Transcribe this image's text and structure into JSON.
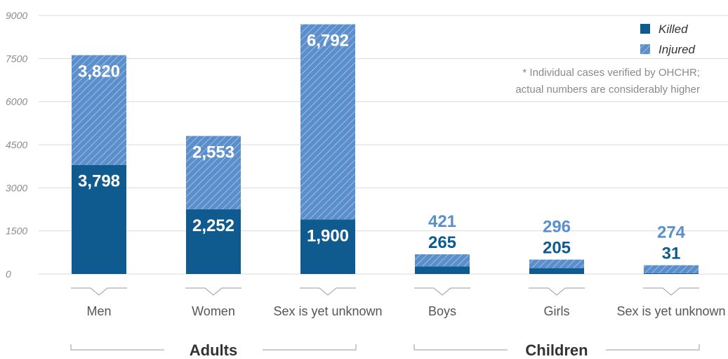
{
  "chart_data": {
    "type": "bar",
    "stacked": true,
    "categories": [
      "Men",
      "Women",
      "Sex is yet unknown",
      "Boys",
      "Girls",
      "Sex is yet unknown"
    ],
    "groups": [
      {
        "label": "Adults",
        "categories": [
          0,
          1,
          2
        ]
      },
      {
        "label": "Children",
        "categories": [
          3,
          4,
          5
        ]
      }
    ],
    "series": [
      {
        "name": "Killed",
        "values": [
          3798,
          2252,
          1900,
          265,
          205,
          31
        ],
        "labels": [
          "3,798",
          "2,252",
          "1,900",
          "265",
          "205",
          "31"
        ]
      },
      {
        "name": "Injured",
        "values": [
          3820,
          2553,
          6792,
          421,
          296,
          274
        ],
        "labels": [
          "3,820",
          "2,553",
          "6,792",
          "421",
          "296",
          "274"
        ]
      }
    ],
    "ylim": [
      0,
      9000
    ],
    "yticks": [
      "0",
      "1500",
      "3000",
      "4500",
      "6000",
      "7500",
      "9000"
    ],
    "ytick_values": [
      0,
      1500,
      3000,
      4500,
      6000,
      7500,
      9000
    ],
    "grid": true,
    "legend_position": "top-right",
    "colors": {
      "killed": "#0f5b8f",
      "injured": "#5b8fcb",
      "injured_hatch": "#9dbde3"
    },
    "note": [
      "* Individual cases verified by OHCHR;",
      "actual numbers are considerably higher"
    ]
  }
}
